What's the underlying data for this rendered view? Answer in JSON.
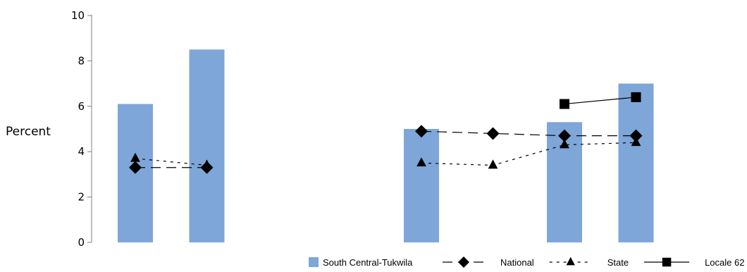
{
  "chart_data": {
    "type": "bar",
    "ylabel": "Percent",
    "ylim": [
      0,
      10
    ],
    "yticks": [
      "0",
      "2",
      "4",
      "6",
      "8",
      "10"
    ],
    "categories": [
      "",
      "",
      "",
      "",
      "",
      "",
      "",
      ""
    ],
    "bar_series": {
      "name": "South Central-Tukwila",
      "color": "#7ea6d8",
      "values": [
        6.1,
        8.5,
        null,
        null,
        5.0,
        null,
        5.3,
        7.0
      ]
    },
    "line_series": [
      {
        "name": "National",
        "marker": "diamond",
        "dash": "long-dash",
        "values": [
          3.3,
          3.3,
          null,
          null,
          4.9,
          4.8,
          4.7,
          4.7
        ]
      },
      {
        "name": "State",
        "marker": "triangle",
        "dash": "short-dash",
        "values": [
          3.7,
          3.4,
          null,
          null,
          3.5,
          3.4,
          4.3,
          4.4
        ]
      },
      {
        "name": "Locale 62",
        "marker": "square",
        "dash": "solid",
        "values": [
          null,
          null,
          null,
          null,
          null,
          null,
          6.1,
          6.4
        ]
      }
    ],
    "grid": false,
    "legend_position": "bottom-right"
  }
}
